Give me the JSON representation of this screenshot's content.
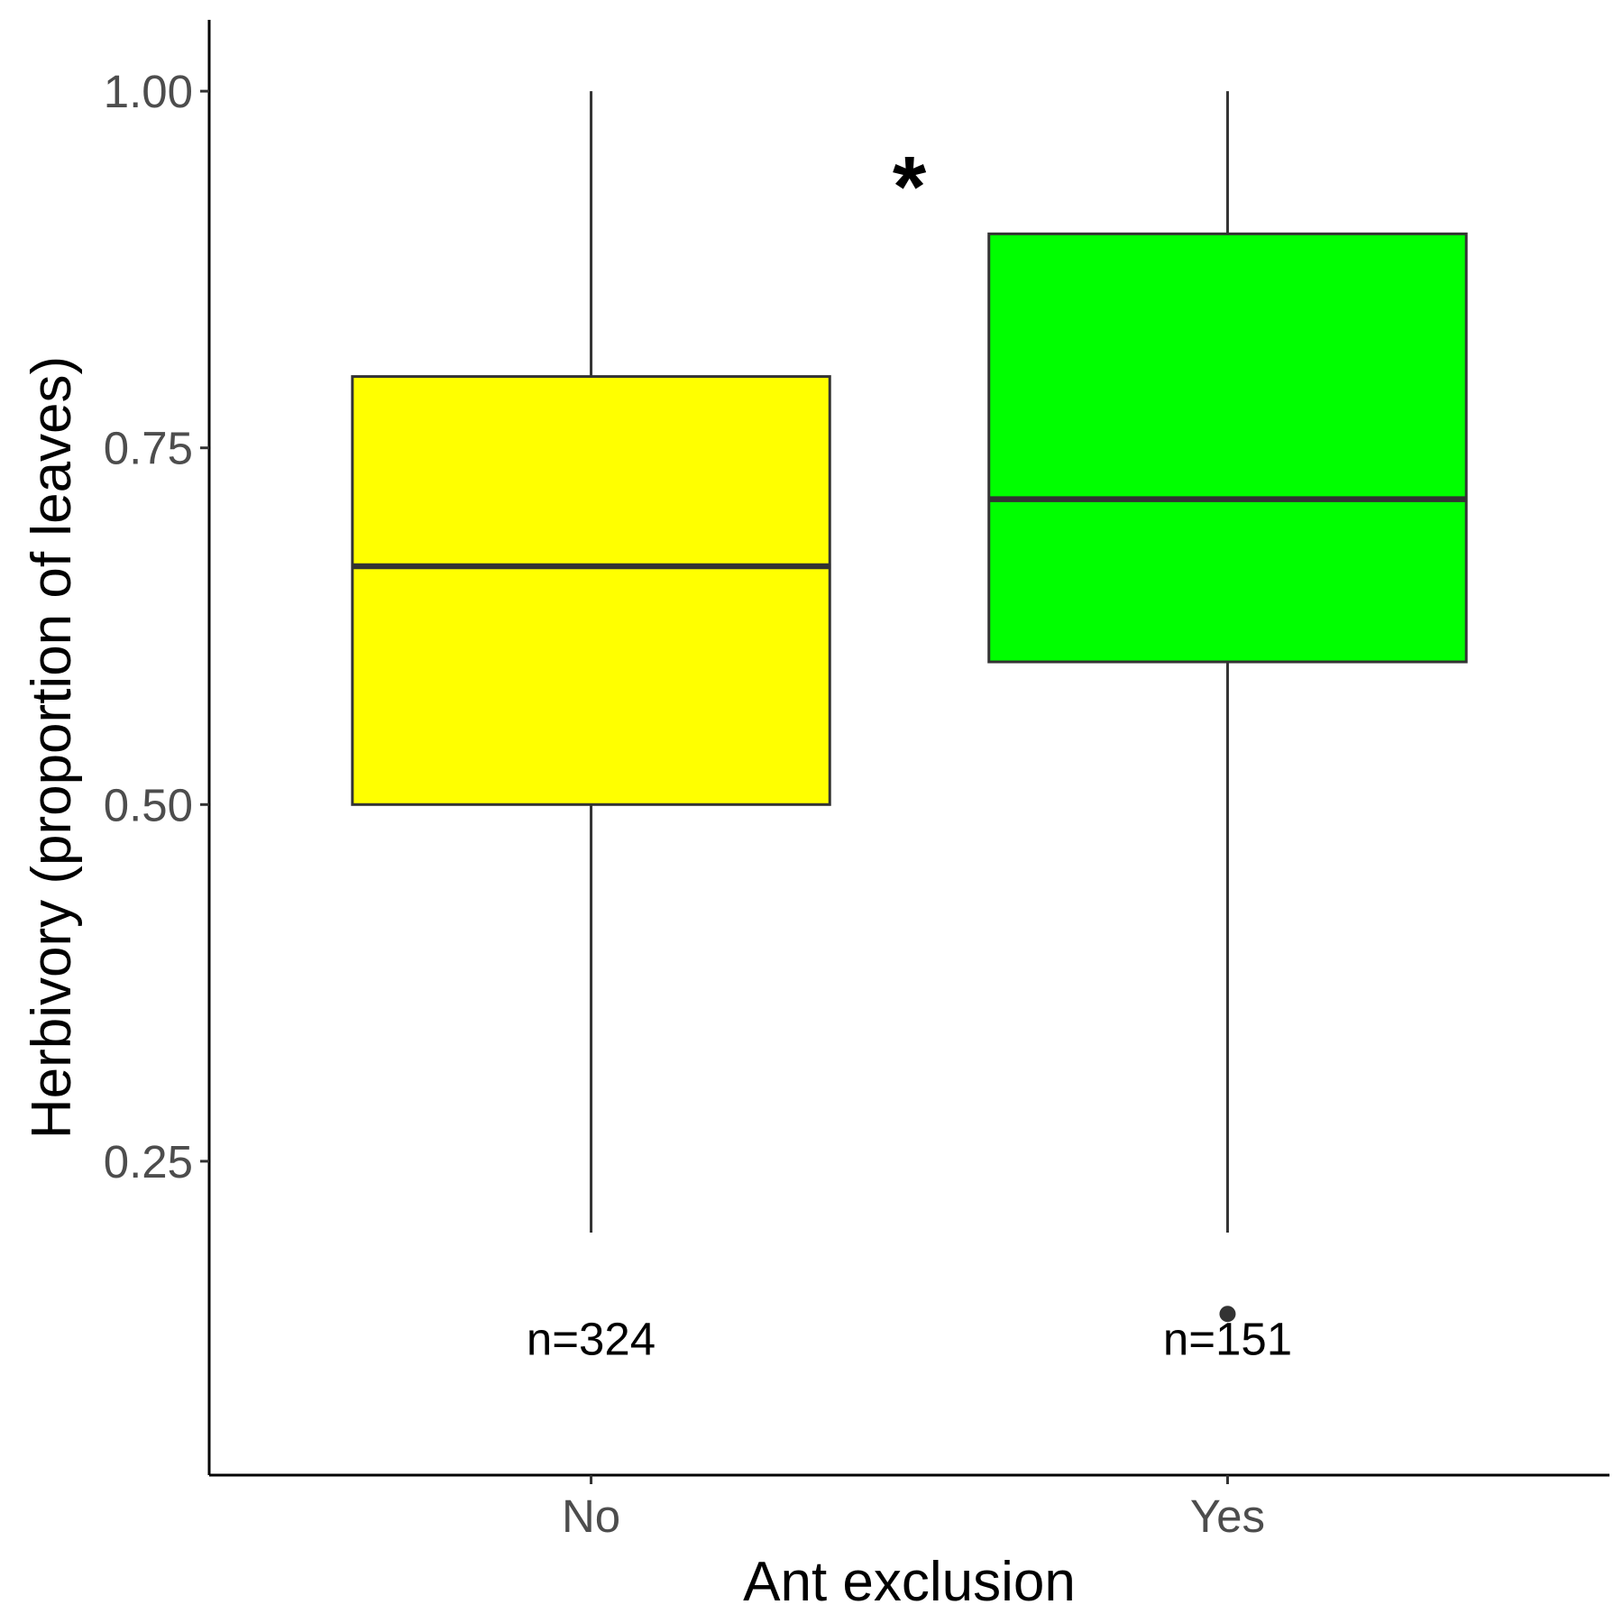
{
  "chart_data": {
    "type": "boxplot",
    "xlabel": "Ant exclusion",
    "ylabel": "Herbivory (proportion of leaves)",
    "ylim": [
      0.03,
      1.05
    ],
    "y_ticks": [
      0.25,
      0.5,
      0.75,
      1.0
    ],
    "y_tick_labels": [
      "0.25",
      "0.50",
      "0.75",
      "1.00"
    ],
    "categories": [
      "No",
      "Yes"
    ],
    "grid": false,
    "legend": "none",
    "boxes": [
      {
        "category": "No",
        "color": "#ffff00",
        "whisker_low": 0.2,
        "q1": 0.5,
        "median": 0.667,
        "q3": 0.8,
        "whisker_high": 1.0,
        "outliers": [],
        "annotation": "n=324",
        "annotation_y": 0.125
      },
      {
        "category": "Yes",
        "color": "#00ff00",
        "whisker_low": 0.2,
        "q1": 0.6,
        "median": 0.714,
        "q3": 0.9,
        "whisker_high": 1.0,
        "outliers": [
          0.143
        ],
        "annotation": "n=151",
        "annotation_y": 0.125
      }
    ],
    "significance": {
      "text": "*",
      "y": 0.95
    }
  }
}
